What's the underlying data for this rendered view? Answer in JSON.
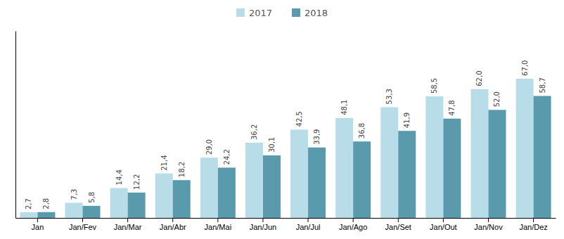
{
  "chart_data": {
    "type": "bar",
    "categories": [
      "Jan",
      "Jan/Fev",
      "Jan/Mar",
      "Jan/Abr",
      "Jan/Mai",
      "Jan/Jun",
      "Jan/Jul",
      "Jan/Ago",
      "Jan/Set",
      "Jan/Out",
      "Jan/Nov",
      "Jan/Dez"
    ],
    "series": [
      {
        "name": "2017",
        "color": "#b8dde8",
        "values": [
          2.7,
          7.3,
          14.4,
          21.4,
          29.0,
          36.2,
          42.5,
          48.1,
          53.3,
          58.5,
          62.0,
          67.0
        ],
        "value_labels": [
          "2,7",
          "7,3",
          "14,4",
          "21,4",
          "29,0",
          "36,2",
          "42,5",
          "48,1",
          "53,3",
          "58,5",
          "62,0",
          "67,0"
        ]
      },
      {
        "name": "2018",
        "color": "#5a9aad",
        "values": [
          2.8,
          5.8,
          12.2,
          18.2,
          24.2,
          30.1,
          33.9,
          36.8,
          41.9,
          47.8,
          52.0,
          58.7
        ],
        "value_labels": [
          "2,8",
          "5,8",
          "12,2",
          "18,2",
          "24,2",
          "30,1",
          "33,9",
          "36,8",
          "41,9",
          "47,8",
          "52,0",
          "58,7"
        ]
      }
    ],
    "ylim": [
      0,
      90
    ],
    "data_labels": true,
    "tick_labels": "x",
    "legend": "top",
    "grid": false
  }
}
